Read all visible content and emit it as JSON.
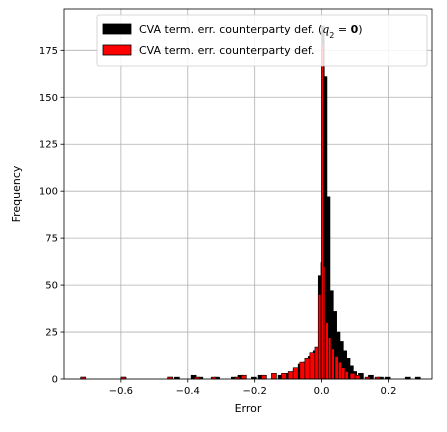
{
  "chart_data": {
    "type": "bar",
    "subtype": "overlaid-histogram",
    "xlabel": "Error",
    "ylabel": "Frequency",
    "xlim": [
      -0.77,
      0.33
    ],
    "ylim": [
      0,
      197
    ],
    "xticks": [
      -0.6,
      -0.4,
      -0.2,
      0.0,
      0.2
    ],
    "xtick_labels": [
      "−0.6",
      "−0.4",
      "−0.2",
      "0.0",
      "0.2"
    ],
    "yticks": [
      0,
      25,
      50,
      75,
      100,
      125,
      150,
      175
    ],
    "ytick_labels": [
      "0",
      "25",
      "50",
      "75",
      "100",
      "125",
      "150",
      "175"
    ],
    "grid": true,
    "legend_position": "top-right",
    "series": [
      {
        "name": "CVA term. err. counterparty def. (q₂ = 0)",
        "color": "#000000",
        "bins": [
          [
            -0.72,
            0.015,
            1
          ],
          [
            -0.6,
            0.015,
            1
          ],
          [
            -0.46,
            0.015,
            1
          ],
          [
            -0.44,
            0.015,
            1
          ],
          [
            -0.39,
            0.015,
            2
          ],
          [
            -0.37,
            0.015,
            1
          ],
          [
            -0.32,
            0.015,
            1
          ],
          [
            -0.27,
            0.015,
            1
          ],
          [
            -0.25,
            0.015,
            2
          ],
          [
            -0.21,
            0.015,
            1
          ],
          [
            -0.19,
            0.015,
            2
          ],
          [
            -0.13,
            0.015,
            2
          ],
          [
            -0.115,
            0.015,
            3
          ],
          [
            -0.1,
            0.015,
            3
          ],
          [
            -0.085,
            0.015,
            5
          ],
          [
            -0.07,
            0.015,
            8
          ],
          [
            -0.055,
            0.015,
            9
          ],
          [
            -0.04,
            0.015,
            12
          ],
          [
            -0.025,
            0.015,
            15
          ],
          [
            -0.01,
            0.01,
            55
          ],
          [
            0.0,
            0.008,
            188
          ],
          [
            0.008,
            0.008,
            161
          ],
          [
            0.016,
            0.009,
            97
          ],
          [
            0.025,
            0.01,
            47
          ],
          [
            0.035,
            0.01,
            36
          ],
          [
            0.045,
            0.01,
            25
          ],
          [
            0.055,
            0.01,
            20
          ],
          [
            0.065,
            0.01,
            15
          ],
          [
            0.075,
            0.01,
            11
          ],
          [
            0.085,
            0.01,
            7
          ],
          [
            0.095,
            0.01,
            4
          ],
          [
            0.11,
            0.015,
            3
          ],
          [
            0.14,
            0.015,
            2
          ],
          [
            0.17,
            0.015,
            1
          ],
          [
            0.19,
            0.015,
            1
          ],
          [
            0.25,
            0.015,
            1
          ],
          [
            0.28,
            0.015,
            1
          ]
        ]
      },
      {
        "name": "CVA term. err. counterparty def.",
        "color": "#ff0000",
        "bins": [
          [
            -0.72,
            0.015,
            1
          ],
          [
            -0.6,
            0.015,
            1
          ],
          [
            -0.46,
            0.015,
            1
          ],
          [
            -0.38,
            0.015,
            1
          ],
          [
            -0.33,
            0.015,
            1
          ],
          [
            -0.26,
            0.015,
            1
          ],
          [
            -0.24,
            0.015,
            2
          ],
          [
            -0.18,
            0.015,
            2
          ],
          [
            -0.15,
            0.015,
            3
          ],
          [
            -0.12,
            0.015,
            3
          ],
          [
            -0.1,
            0.015,
            4
          ],
          [
            -0.085,
            0.015,
            6
          ],
          [
            -0.065,
            0.015,
            9
          ],
          [
            -0.05,
            0.015,
            11
          ],
          [
            -0.035,
            0.015,
            14
          ],
          [
            -0.02,
            0.01,
            17
          ],
          [
            -0.01,
            0.01,
            45
          ],
          [
            -0.002,
            0.004,
            62
          ],
          [
            0.0,
            0.005,
            178
          ],
          [
            0.005,
            0.005,
            60
          ],
          [
            0.012,
            0.008,
            30
          ],
          [
            0.02,
            0.008,
            22
          ],
          [
            0.03,
            0.008,
            16
          ],
          [
            0.04,
            0.01,
            12
          ],
          [
            0.05,
            0.01,
            9
          ],
          [
            0.06,
            0.01,
            6
          ],
          [
            0.07,
            0.01,
            4
          ],
          [
            0.085,
            0.015,
            3
          ],
          [
            0.1,
            0.015,
            2
          ],
          [
            0.13,
            0.015,
            1
          ],
          [
            0.16,
            0.015,
            1
          ]
        ]
      }
    ]
  },
  "legend": {
    "entries": [
      {
        "label": "CVA term. err. counterparty def. (",
        "math": "q",
        "sub": "2",
        "eq": " = ",
        "bold": "0",
        "close": ")",
        "color": "#000000"
      },
      {
        "label": "CVA term. err. counterparty def.",
        "color": "#ff0000"
      }
    ]
  }
}
